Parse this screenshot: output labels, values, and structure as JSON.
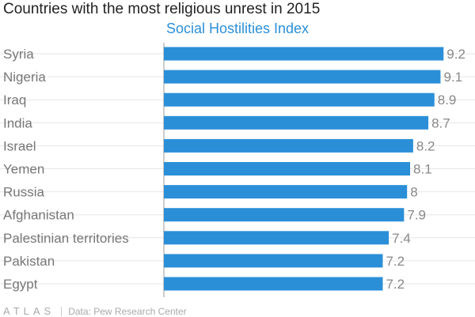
{
  "chart_data": {
    "type": "bar",
    "orientation": "horizontal",
    "title": "Countries with the most religious unrest in 2015",
    "subtitle": "Social Hostilities Index",
    "categories": [
      "Syria",
      "Nigeria",
      "Iraq",
      "India",
      "Israel",
      "Yemen",
      "Russia",
      "Afghanistan",
      "Palestinian territories",
      "Pakistan",
      "Egypt"
    ],
    "values": [
      9.2,
      9.1,
      8.9,
      8.7,
      8.2,
      8.1,
      8,
      7.9,
      7.4,
      7.2,
      7.2
    ],
    "value_labels": [
      "9.2",
      "9.1",
      "8.9",
      "8.7",
      "8.2",
      "8.1",
      "8",
      "7.9",
      "7.4",
      "7.2",
      "7.2"
    ],
    "xlim": [
      0,
      10
    ],
    "xlabel": "",
    "ylabel": "",
    "grid": true
  },
  "footer": {
    "logo": "ATLAS",
    "source": "Data: Pew Research Center"
  },
  "colors": {
    "bar": "#2b8fd8",
    "subtitle": "#2b8fd8",
    "category_label": "#777777",
    "value_label": "#888888",
    "gridline": "#e6e6e6",
    "axis": "#999999"
  }
}
